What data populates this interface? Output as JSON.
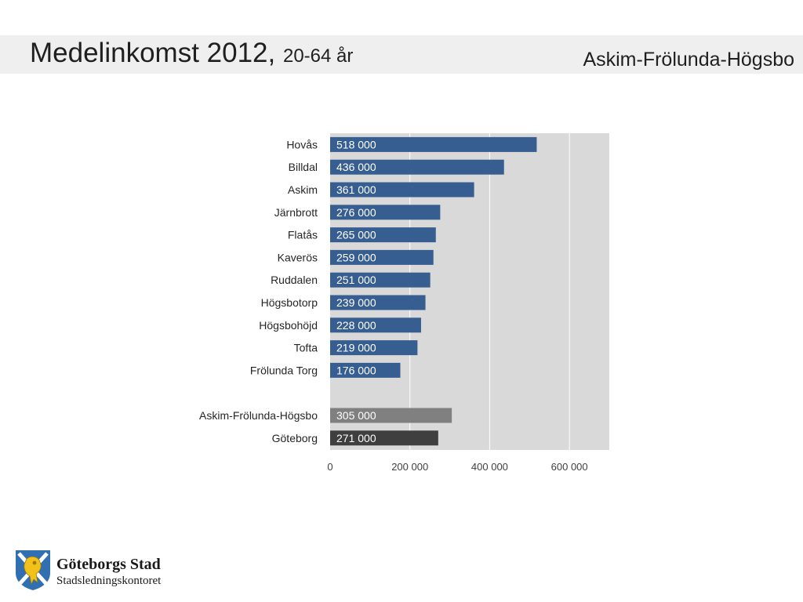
{
  "header": {
    "title": "Medelinkomst 2012,",
    "subtitle": "20-64 år",
    "region": "Askim-Frölunda-Högsbo"
  },
  "footer": {
    "logo_name": "Göteborgs Stad",
    "logo_department": "Stadsledningskontoret"
  },
  "chart_data": {
    "type": "bar",
    "orientation": "horizontal",
    "categories": [
      "Hovås",
      "Billdal",
      "Askim",
      "Järnbrott",
      "Flatås",
      "Kaverös",
      "Ruddalen",
      "Högsbotorp",
      "Högsbohöjd",
      "Tofta",
      "Frölunda Torg",
      "",
      "Askim-Frölunda-Högsbo",
      "Göteborg"
    ],
    "values": [
      518000,
      436000,
      361000,
      276000,
      265000,
      259000,
      251000,
      239000,
      228000,
      219000,
      176000,
      null,
      305000,
      271000
    ],
    "data_labels": [
      "518 000",
      "436 000",
      "361 000",
      "276 000",
      "265 000",
      "259 000",
      "251 000",
      "239 000",
      "228 000",
      "219 000",
      "176 000",
      "",
      "305 000",
      "271 000"
    ],
    "bar_colors": [
      "#375e91",
      "#375e91",
      "#375e91",
      "#375e91",
      "#375e91",
      "#375e91",
      "#375e91",
      "#375e91",
      "#375e91",
      "#375e91",
      "#375e91",
      "",
      "#808080",
      "#3f3f3f"
    ],
    "xlim": [
      0,
      700000
    ],
    "x_ticks": [
      0,
      200000,
      400000,
      600000
    ],
    "x_tick_labels": [
      "0",
      "200 000",
      "400 000",
      "600 000"
    ],
    "grid": true,
    "plot_background": "#d9d9d9",
    "gridline_color": "#ffffff",
    "legend": "none"
  }
}
